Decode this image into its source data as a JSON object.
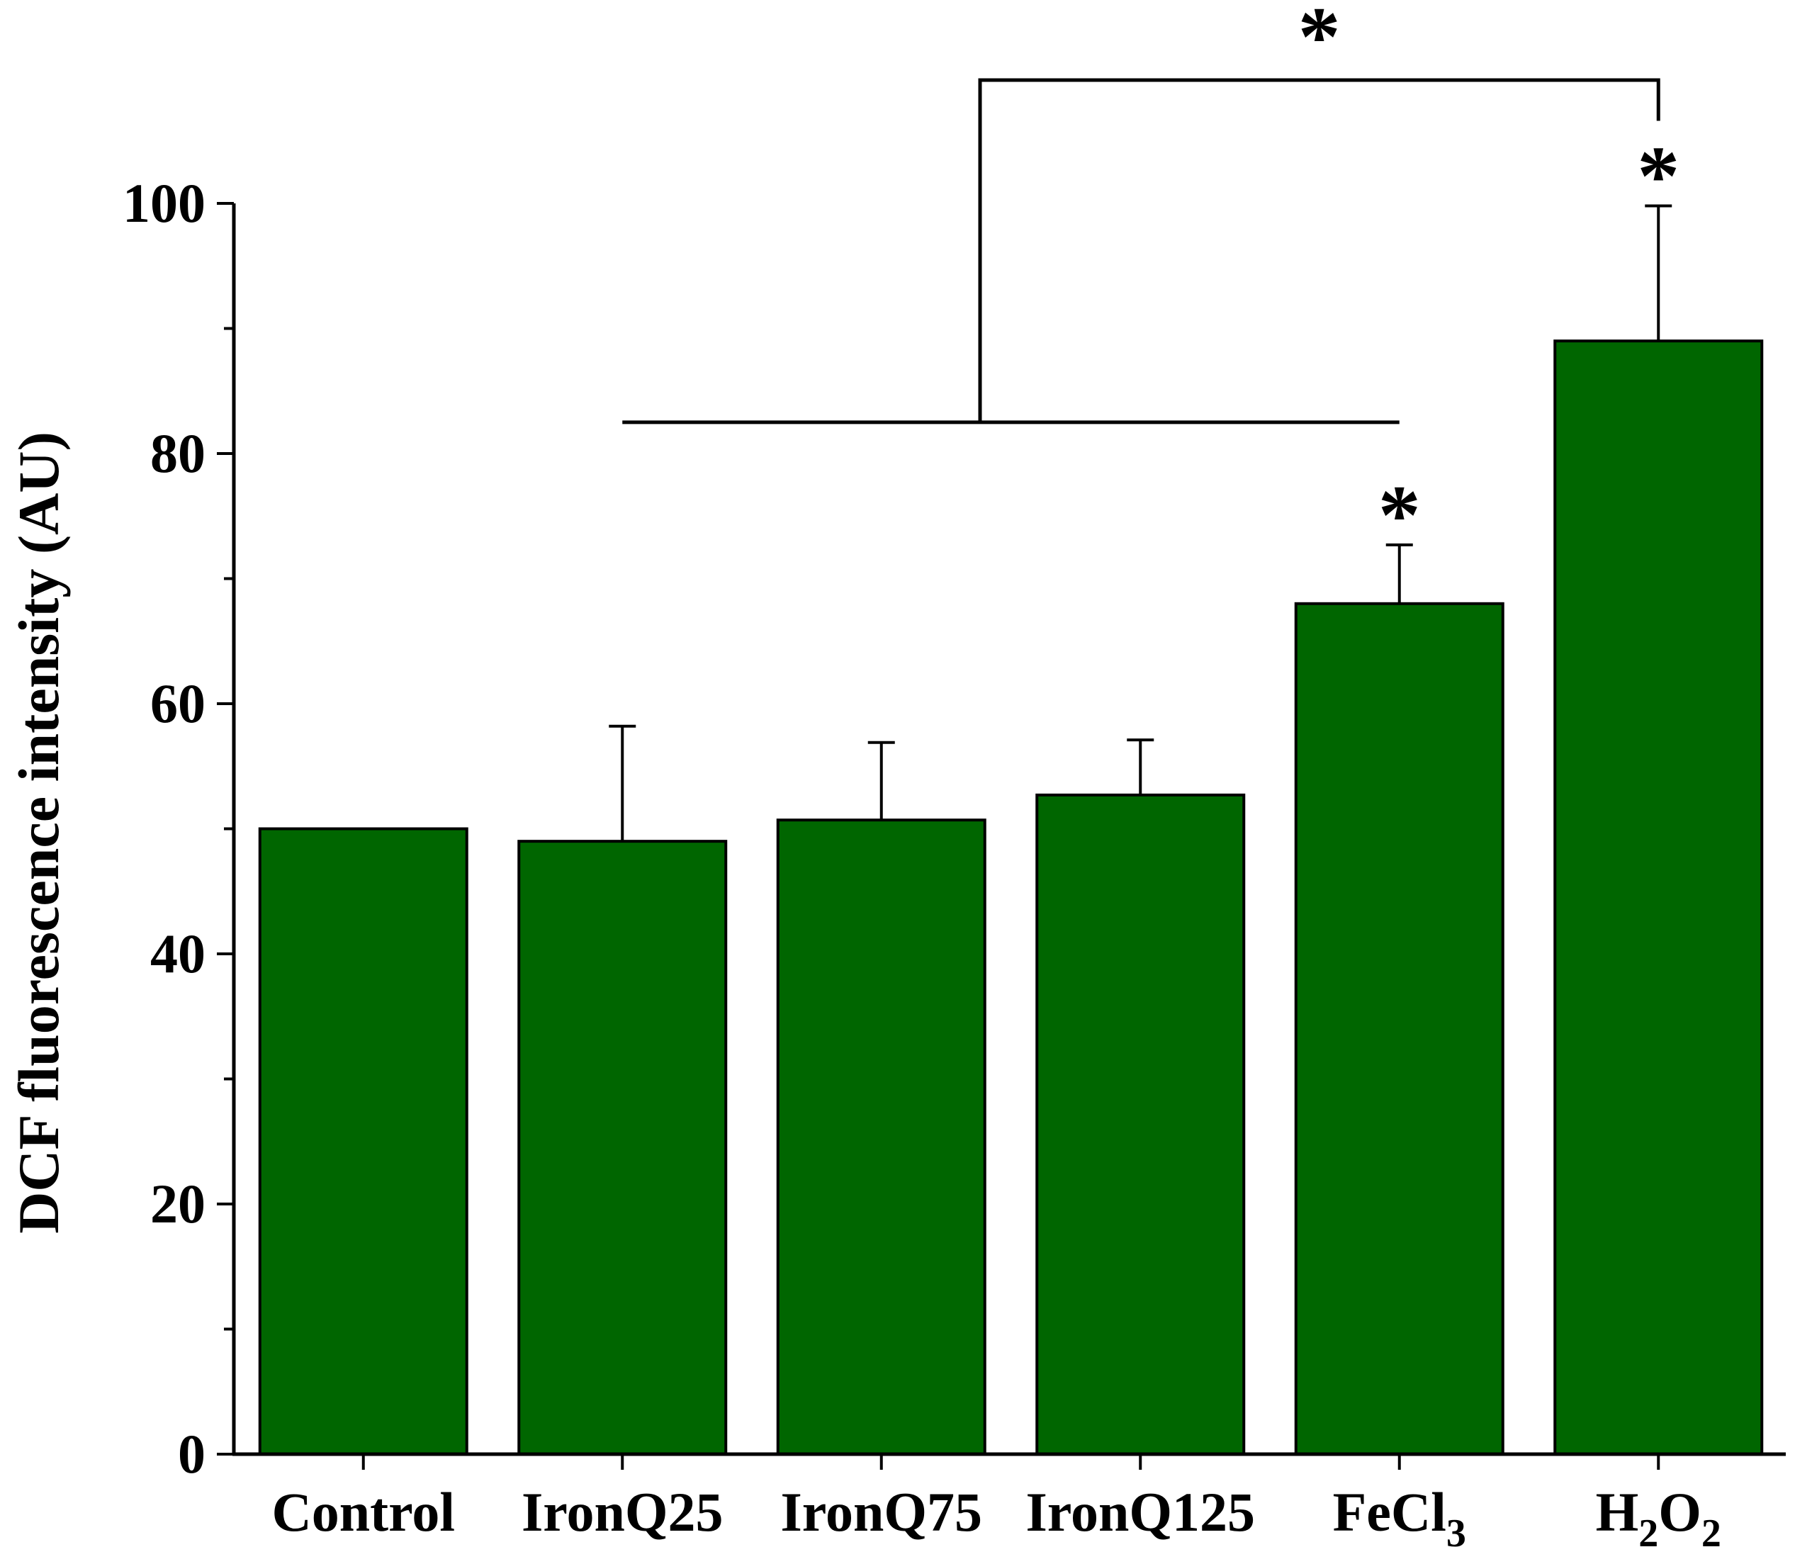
{
  "chart_data": {
    "type": "bar",
    "title": "",
    "xlabel": "",
    "ylabel": "DCF fluorescence intensity (AU)",
    "ylim": [
      0,
      100
    ],
    "yticks": [
      "0",
      "20",
      "40",
      "60",
      "80",
      "100"
    ],
    "categories": [
      {
        "label": "Control",
        "sub": ""
      },
      {
        "label": "IronQ25",
        "sub": ""
      },
      {
        "label": "IronQ75",
        "sub": ""
      },
      {
        "label": "IronQ125",
        "sub": ""
      },
      {
        "label": "FeCl",
        "sub": "3"
      },
      {
        "label": "H",
        "sub": "2",
        "label2": "O",
        "sub2": "2"
      }
    ],
    "values": [
      50,
      49,
      50.7,
      52.7,
      68,
      89
    ],
    "errors": [
      0,
      9.2,
      6.2,
      4.4,
      4.7,
      10.8
    ],
    "significance": [
      "",
      "",
      "",
      "",
      "*",
      "*"
    ],
    "comparison": {
      "label": "*",
      "from_categories": [
        "IronQ25",
        "IronQ75",
        "IronQ125",
        "FeCl3"
      ],
      "to_category": "H2O2"
    },
    "bar_color": "#006600",
    "grid": false
  }
}
